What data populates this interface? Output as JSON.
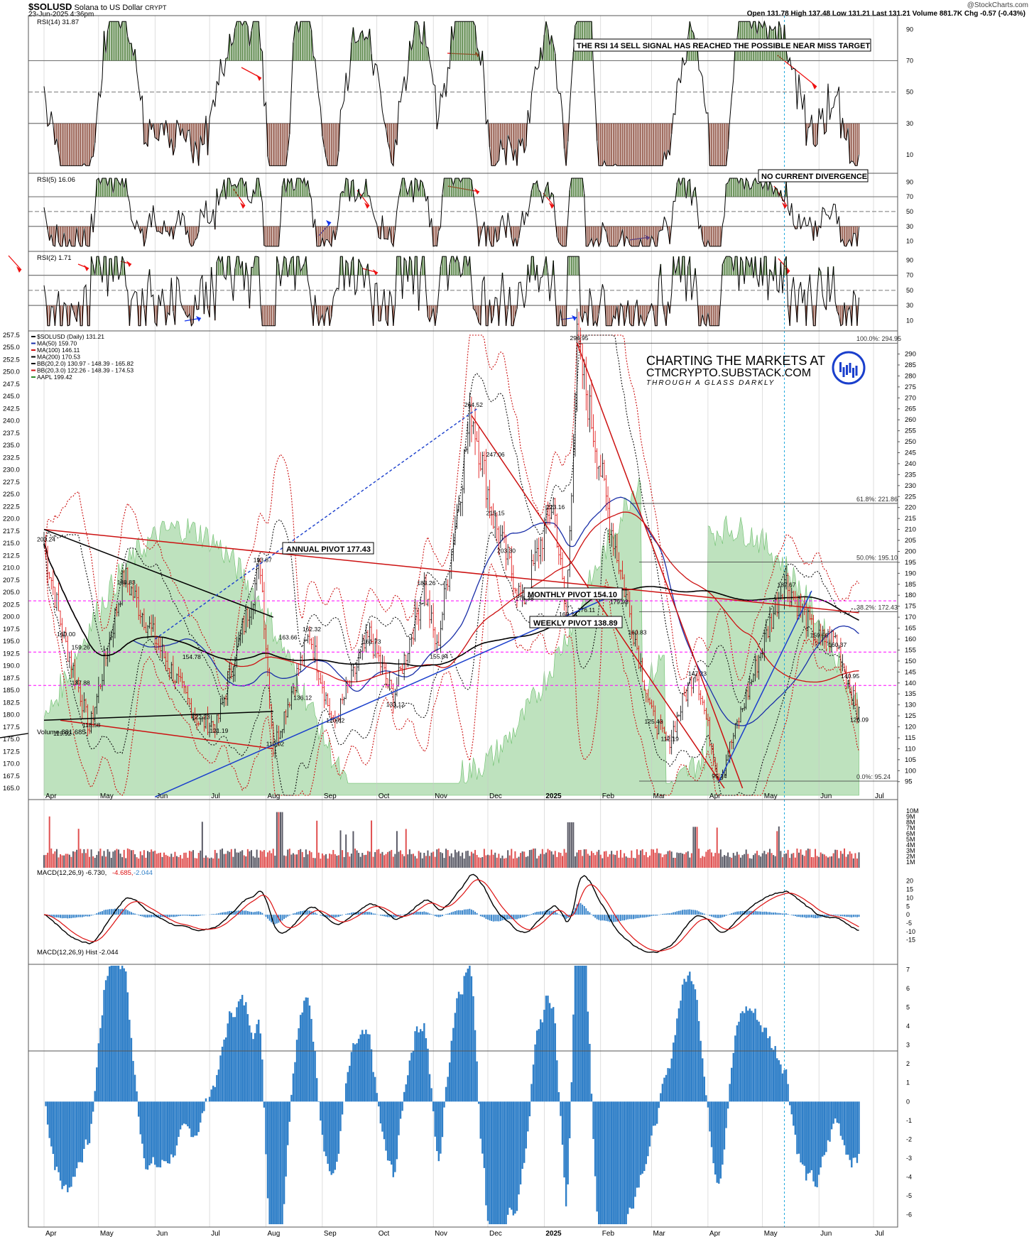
{
  "header": {
    "symbol": "$SOLUSD",
    "name": "Solana to US Dollar",
    "exchange": "CRYPT",
    "date": "23-Jun-2025 4:36pm",
    "watermark": "@StockCharts.com",
    "quote": "Open 131.78  High 137.48  Low 131.21  Last 131.21  Volume 881.7K  Chg -0.57 (-0.43%)"
  },
  "colors": {
    "price_up": "#000000",
    "price_down": "#dd0000",
    "ma50": "#1a2fa8",
    "ma100": "#cc1111",
    "ma200": "#000000",
    "aapl_fill": "#a8d8a8",
    "rsi_green": "#4d7d3a",
    "rsi_brown": "#8a4a3a",
    "vol_up": "#5a5a66",
    "vol_down": "#e05050",
    "macd_hist": "#2f7fc8",
    "pivot": "#ff00ff"
  },
  "x_axis": {
    "labels": [
      "Apr",
      "May",
      "Jun",
      "Jul",
      "Aug",
      "Sep",
      "Oct",
      "Nov",
      "Dec",
      "2025",
      "Feb",
      "Mar",
      "Apr",
      "May",
      "Jun",
      "Jul"
    ]
  },
  "panels": {
    "rsi14": {
      "label": "RSI(14) 31.87",
      "ticks": [
        90,
        70,
        50,
        30,
        10
      ],
      "note": "THE RSI 14 SELL SIGNAL HAS REACHED THE POSSIBLE NEAR MISS TARGET"
    },
    "rsi5": {
      "label": "RSI(5) 16.06",
      "ticks": [
        90,
        70,
        50,
        30,
        10
      ],
      "note": "NO CURRENT DIVERGENCE"
    },
    "rsi2": {
      "label": "RSI(2) 1.71",
      "ticks": [
        90,
        70,
        50,
        30,
        10
      ]
    },
    "price": {
      "legend": [
        "$SOLUSD (Daily) 131.21",
        "MA(50) 159.70",
        "MA(100) 146.11",
        "MA(200) 170.53",
        "BB(20,2.0) 130.97 - 148.39 - 165.82",
        "BB(20,3.0) 122.26 - 148.39 - 174.53",
        "AAPL 199.42"
      ],
      "left_ticks": [
        257.5,
        255.0,
        252.5,
        250.0,
        247.5,
        245.0,
        242.5,
        240.0,
        237.5,
        235.0,
        232.5,
        230.0,
        227.5,
        225.0,
        222.5,
        220.0,
        217.5,
        215.0,
        212.5,
        210.0,
        207.5,
        205.0,
        202.5,
        200.0,
        197.5,
        195.0,
        192.5,
        190.0,
        187.5,
        185.0,
        182.5,
        180.0,
        177.5,
        175.0,
        172.5,
        170.0,
        167.5,
        165.0
      ],
      "right_ticks": [
        290,
        285,
        280,
        275,
        270,
        265,
        260,
        255,
        250,
        245,
        240,
        235,
        230,
        225,
        220,
        215,
        210,
        205,
        200,
        195,
        190,
        185,
        180,
        175,
        170,
        165,
        160,
        155,
        150,
        145,
        140,
        135,
        130,
        125,
        120,
        115,
        110,
        105,
        100,
        95
      ],
      "annual_pivot": "ANNUAL PIVOT 177.43",
      "monthly_pivot": "MONTHLY PIVOT 154.10",
      "weekly_pivot": "WEEKLY PIVOT 138.89",
      "fib": [
        "100.0%: 294.95",
        "61.8%: 221.86",
        "50.0%: 195.10",
        "38.2%: 172.43",
        "0.0%: 95.24"
      ],
      "price_labels": [
        "203.24",
        "188.83",
        "160.00",
        "159.26",
        "137.88",
        "119.92",
        "118.58",
        "154.78",
        "122.23",
        "121.19",
        "193.87",
        "163.66",
        "162.32",
        "136.12",
        "110.02",
        "161.73",
        "120.62",
        "133.12",
        "183.26",
        "155.04",
        "264.52",
        "247.06",
        "215.15",
        "203.30",
        "176.38",
        "223.16",
        "169.14",
        "176.11",
        "294.95",
        "179.93",
        "160.83",
        "125.43",
        "112.19",
        "147.23",
        "95.24",
        "187.67",
        "159.50",
        "160.37",
        "140.95",
        "126.09"
      ],
      "brand_line1": "CHARTING THE MARKETS AT",
      "brand_line2": "CTMCRYPTO.SUBSTACK.COM",
      "brand_line3": "THROUGH A GLASS DARKLY"
    },
    "volume": {
      "label": "Volume 881,685",
      "ticks": [
        "10M",
        "9M",
        "8M",
        "7M",
        "6M",
        "5M",
        "4M",
        "3M",
        "2M",
        "1M"
      ]
    },
    "macd": {
      "label": "MACD(12,26,9) -6.730,",
      "v2": "-4.685,",
      "v3": "-2.044",
      "ticks": [
        20,
        15,
        10,
        5,
        0,
        -5,
        -10,
        -15
      ]
    },
    "hist": {
      "label": "MACD(12,26,9) Hist -2.044",
      "ticks": [
        7,
        6,
        5,
        4,
        3,
        2,
        1,
        0,
        -1,
        -2,
        -3,
        -4,
        -5,
        -6
      ]
    }
  },
  "chart_data": {
    "type": "line",
    "title": "$SOLUSD Solana to US Dollar CRYPT",
    "x": [
      "2024-04",
      "2024-05",
      "2024-06",
      "2024-07",
      "2024-08",
      "2024-09",
      "2024-10",
      "2024-11",
      "2024-12",
      "2025-01",
      "2025-02",
      "2025-03",
      "2025-04",
      "2025-05",
      "2025-06",
      "2025-07"
    ],
    "price_anchors": [
      {
        "date": "2024-04-01",
        "close": 203.24
      },
      {
        "date": "2024-04-12",
        "close": 160.0
      },
      {
        "date": "2024-04-20",
        "close": 137.88
      },
      {
        "date": "2024-04-26",
        "close": 118.58
      },
      {
        "date": "2024-05-15",
        "close": 188.83
      },
      {
        "date": "2024-06-01",
        "close": 160.0
      },
      {
        "date": "2024-06-25",
        "close": 122.23
      },
      {
        "date": "2024-07-05",
        "close": 121.19
      },
      {
        "date": "2024-07-29",
        "close": 193.87
      },
      {
        "date": "2024-08-05",
        "close": 110.02
      },
      {
        "date": "2024-08-25",
        "close": 162.32
      },
      {
        "date": "2024-09-07",
        "close": 120.62
      },
      {
        "date": "2024-09-27",
        "close": 161.73
      },
      {
        "date": "2024-10-10",
        "close": 133.12
      },
      {
        "date": "2024-10-27",
        "close": 183.26
      },
      {
        "date": "2024-11-03",
        "close": 155.04
      },
      {
        "date": "2024-11-22",
        "close": 264.52
      },
      {
        "date": "2024-12-04",
        "close": 215.15
      },
      {
        "date": "2024-12-20",
        "close": 176.38
      },
      {
        "date": "2025-01-06",
        "close": 223.16
      },
      {
        "date": "2025-01-13",
        "close": 169.14
      },
      {
        "date": "2025-01-19",
        "close": 294.95
      },
      {
        "date": "2025-02-07",
        "close": 210.0
      },
      {
        "date": "2025-03-01",
        "close": 125.43
      },
      {
        "date": "2025-03-10",
        "close": 112.19
      },
      {
        "date": "2025-03-25",
        "close": 147.23
      },
      {
        "date": "2025-04-07",
        "close": 95.24
      },
      {
        "date": "2025-05-13",
        "close": 187.67
      },
      {
        "date": "2025-05-31",
        "close": 159.5
      },
      {
        "date": "2025-06-10",
        "close": 160.37
      },
      {
        "date": "2025-06-17",
        "close": 140.95
      },
      {
        "date": "2025-06-22",
        "close": 126.09
      },
      {
        "date": "2025-06-23",
        "close": 131.21
      }
    ],
    "pivots": {
      "annual": 177.43,
      "monthly": 154.1,
      "weekly": 138.89
    },
    "fib_levels": {
      "100%": 294.95,
      "61.8%": 221.86,
      "50%": 195.1,
      "38.2%": 172.43,
      "0%": 95.24
    },
    "last": {
      "open": 131.78,
      "high": 137.48,
      "low": 131.21,
      "close": 131.21,
      "volume": 881685,
      "rsi14": 31.87,
      "rsi5": 16.06,
      "rsi2": 1.71,
      "ma50": 159.7,
      "ma100": 146.11,
      "ma200": 170.53,
      "macd": -6.73,
      "signal": -4.685,
      "hist": -2.044
    }
  }
}
